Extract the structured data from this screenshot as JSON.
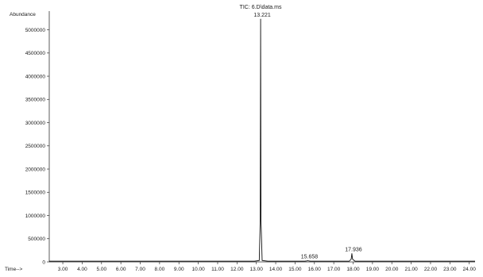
{
  "chart_data": {
    "type": "line",
    "title": "",
    "trace_label": "TIC: 6.D\\data.ms",
    "ylabel": "Abundance",
    "xlabel": "Time-->",
    "xlim": [
      2.3,
      24.3
    ],
    "ylim": [
      0,
      5300000
    ],
    "grid": false,
    "x_ticks": [
      3.0,
      4.0,
      5.0,
      6.0,
      7.0,
      8.0,
      9.0,
      10.0,
      11.0,
      12.0,
      13.0,
      14.0,
      15.0,
      16.0,
      17.0,
      18.0,
      19.0,
      20.0,
      21.0,
      22.0,
      23.0,
      24.0
    ],
    "x_tick_labels": [
      "3.00",
      "4.00",
      "5.00",
      "6.00",
      "7.00",
      "8.00",
      "9.00",
      "10.00",
      "11.00",
      "12.00",
      "13.00",
      "14.00",
      "15.00",
      "16.00",
      "17.00",
      "18.00",
      "19.00",
      "20.00",
      "21.00",
      "22.00",
      "23.00",
      "24.00"
    ],
    "y_ticks": [
      0,
      500000,
      1000000,
      1500000,
      2000000,
      2500000,
      3000000,
      3500000,
      4000000,
      4500000,
      5000000
    ],
    "y_tick_labels": [
      "0",
      "500000",
      "1000000",
      "1500000",
      "2000000",
      "2500000",
      "3000000",
      "3500000",
      "4000000",
      "4500000",
      "5000000"
    ],
    "series": [
      {
        "x": [
          2.3,
          12.9,
          13.15,
          13.2,
          13.221,
          13.24,
          13.3,
          13.6,
          15.5,
          15.63,
          15.658,
          15.69,
          15.8,
          17.8,
          17.9,
          17.936,
          17.97,
          18.1,
          24.3
        ],
        "y": [
          15000,
          15000,
          30000,
          900000,
          5230000,
          900000,
          30000,
          15000,
          15000,
          22000,
          28000,
          22000,
          15000,
          15000,
          60000,
          180000,
          60000,
          15000,
          15000
        ]
      }
    ],
    "annotations": [
      {
        "x": 13.221,
        "y": 5230000,
        "text": "13.221"
      },
      {
        "x": 15.658,
        "y": 28000,
        "text": "15.658"
      },
      {
        "x": 17.936,
        "y": 180000,
        "text": "17.936"
      }
    ]
  }
}
